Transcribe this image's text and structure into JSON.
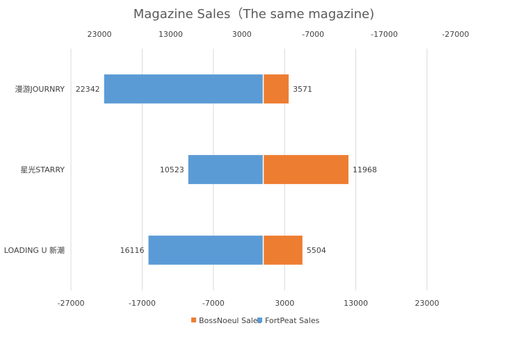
{
  "chart_data": {
    "type": "bar",
    "orientation": "horizontal",
    "title": "Magazine Sales（The same magazine)",
    "categories": [
      "漫游JOURNRY",
      "星光STARRY",
      "LOADING U 新潮"
    ],
    "series": [
      {
        "name": "BossNoeul Sales",
        "values": [
          3571,
          11968,
          5504
        ],
        "color": "#ED7D31",
        "direction": "positive"
      },
      {
        "name": "FortPeat Sales",
        "values": [
          22342,
          10523,
          16116
        ],
        "color": "#5B9BD5",
        "direction": "negative"
      }
    ],
    "xlim": [
      -27000,
      27000
    ],
    "bottom_ticks": [
      "-27000",
      "-17000",
      "-7000",
      "3000",
      "13000",
      "23000"
    ],
    "top_ticks": [
      "23000",
      "13000",
      "3000",
      "-7000",
      "-17000",
      "-27000"
    ],
    "grid": true,
    "legend_position": "bottom",
    "label_color": "#404040",
    "grid_color": "#D9D9D9"
  }
}
